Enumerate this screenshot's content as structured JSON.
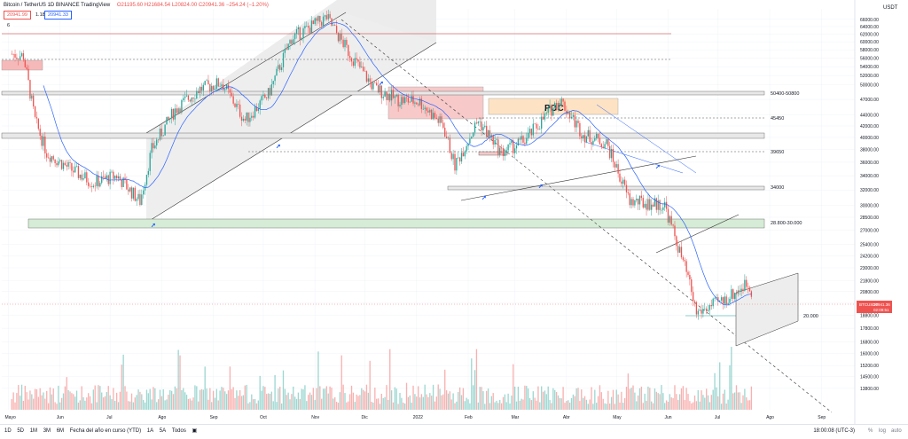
{
  "header": {
    "symbol": "Bitcoin / TetherUS",
    "interval": "1D",
    "exchange": "BINANCE",
    "platform": "TradingView",
    "ohlc": "O21195.60 H21684.54 L20824.00 C20941.36 −254.24 (−1.20%)",
    "bid": "20941.99",
    "ask": "20941.33",
    "lot": "1.18",
    "indicator": "6"
  },
  "axis": {
    "unit": "USDT",
    "price_label": "BTCUSDT",
    "price_value": "20941.36",
    "countdown": "02:09:51"
  },
  "chart_data": {
    "type": "candlestick",
    "title": "",
    "y_ticks": [
      66000,
      64000,
      62000,
      60000,
      58000,
      56000,
      54000,
      52000,
      50000,
      47000,
      44000,
      42000,
      40000,
      38000,
      36000,
      34000,
      32000,
      30000,
      28500,
      27000,
      25400,
      24200,
      23000,
      21800,
      20800,
      19800,
      18800,
      17800,
      16800,
      16000,
      15200,
      14500,
      13800
    ],
    "x_ticks": [
      "Mayo",
      "Jun",
      "Jul",
      "Ago",
      "Sep",
      "Oct",
      "Nov",
      "Dic",
      "2022",
      "Feb",
      "Mar",
      "Abr",
      "May",
      "Jun",
      "Jul",
      "Ago",
      "Sep"
    ],
    "last_price": 20941.36,
    "trend": [
      [
        "2021-05-03",
        57000
      ],
      [
        "2021-05-10",
        56500
      ],
      [
        "2021-05-17",
        43000
      ],
      [
        "2021-05-24",
        37500
      ],
      [
        "2021-06-07",
        35000
      ],
      [
        "2021-06-21",
        33000
      ],
      [
        "2021-07-05",
        34000
      ],
      [
        "2021-07-19",
        30500
      ],
      [
        "2021-07-26",
        38000
      ],
      [
        "2021-08-09",
        45000
      ],
      [
        "2021-08-23",
        49000
      ],
      [
        "2021-09-06",
        50500
      ],
      [
        "2021-09-20",
        43000
      ],
      [
        "2021-10-04",
        48000
      ],
      [
        "2021-10-18",
        61000
      ],
      [
        "2021-11-08",
        66500
      ],
      [
        "2021-11-22",
        57000
      ],
      [
        "2021-12-06",
        49500
      ],
      [
        "2021-12-20",
        47000
      ],
      [
        "2022-01-03",
        46500
      ],
      [
        "2022-01-17",
        42000
      ],
      [
        "2022-01-24",
        35500
      ],
      [
        "2022-02-07",
        43000
      ],
      [
        "2022-02-21",
        37500
      ],
      [
        "2022-03-07",
        39500
      ],
      [
        "2022-03-28",
        47000
      ],
      [
        "2022-04-11",
        40500
      ],
      [
        "2022-04-25",
        39000
      ],
      [
        "2022-05-09",
        30500
      ],
      [
        "2022-05-30",
        30000
      ],
      [
        "2022-06-13",
        22000
      ],
      [
        "2022-06-18",
        19000
      ],
      [
        "2022-07-04",
        20000
      ],
      [
        "2022-07-18",
        21500
      ],
      [
        "2022-07-21",
        20941
      ]
    ],
    "horizontal_levels": [
      {
        "label": "50400-50800",
        "low": 50400,
        "high": 50800
      },
      {
        "label": "45450",
        "value": 45450
      },
      {
        "label": "39650",
        "value": 39650
      },
      {
        "label": "34000",
        "value": 34000
      },
      {
        "label": "28.800-30.000",
        "low": 28800,
        "high": 30000
      },
      {
        "label": "20.000",
        "value": 20000
      }
    ],
    "annotations": [
      "POC"
    ]
  },
  "range_buttons": [
    "1D",
    "5D",
    "1M",
    "3M",
    "6M",
    "Fecha del año en curso (YTD)",
    "1A",
    "5A",
    "Todos"
  ],
  "clock": "18:00:08 (UTC-3)",
  "bottom_controls": [
    "%",
    "log",
    "auto"
  ],
  "colors": {
    "up": "#26a69a",
    "down": "#ef5350",
    "ma": "#2962ff",
    "zone_red": "#f7c9c9",
    "zone_green": "#d6ecd6",
    "poc": "#fde3c4",
    "channel": "#ededed"
  }
}
